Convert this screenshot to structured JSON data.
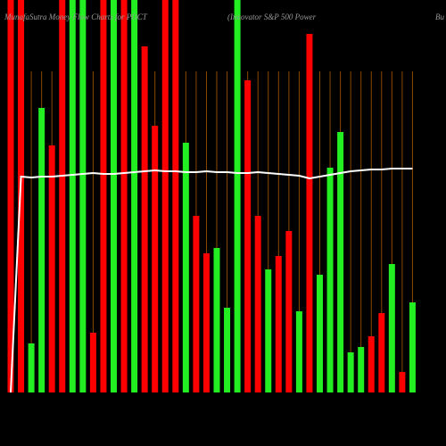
{
  "chart_data": {
    "type": "bar",
    "title": "MunafaSutra  Money Flow  Charts for POCT",
    "subtitle": "(Innovator S&P 500  Power",
    "title_tail": "Bu",
    "ylim": [
      0,
      440
    ],
    "values": [
      440,
      440,
      55,
      319,
      277,
      440,
      440,
      440,
      67,
      440,
      440,
      440,
      440,
      388,
      299,
      440,
      440,
      280,
      198,
      156,
      162,
      95,
      440,
      350,
      198,
      138,
      153,
      181,
      91,
      402,
      132,
      252,
      292,
      45,
      51,
      63,
      89,
      144,
      23,
      101
    ],
    "colors": [
      "#ff0000",
      "#ff0000",
      "#22ee22",
      "#22ee22",
      "#ff0000",
      "#ff0000",
      "#22ee22",
      "#22ee22",
      "#ff0000",
      "#ff0000",
      "#22ee22",
      "#ff0000",
      "#22ee22",
      "#ff0000",
      "#ff0000",
      "#ff0000",
      "#ff0000",
      "#22ee22",
      "#ff0000",
      "#ff0000",
      "#22ee22",
      "#22ee22",
      "#22ee22",
      "#ff0000",
      "#ff0000",
      "#22ee22",
      "#ff0000",
      "#ff0000",
      "#22ee22",
      "#ff0000",
      "#22ee22",
      "#22ee22",
      "#22ee22",
      "#22ee22",
      "#22ee22",
      "#ff0000",
      "#ff0000",
      "#22ee22",
      "#ff0000",
      "#22ee22"
    ],
    "line": {
      "color": "#ffffff",
      "values": [
        0,
        242,
        241,
        242,
        242,
        243,
        244,
        245,
        246,
        245,
        245,
        246,
        247,
        248,
        249,
        248,
        248,
        247,
        247,
        248,
        247,
        247,
        246,
        246,
        247,
        246,
        245,
        244,
        243,
        240,
        242,
        244,
        246,
        248,
        249,
        250,
        250,
        251,
        251,
        251
      ]
    }
  }
}
